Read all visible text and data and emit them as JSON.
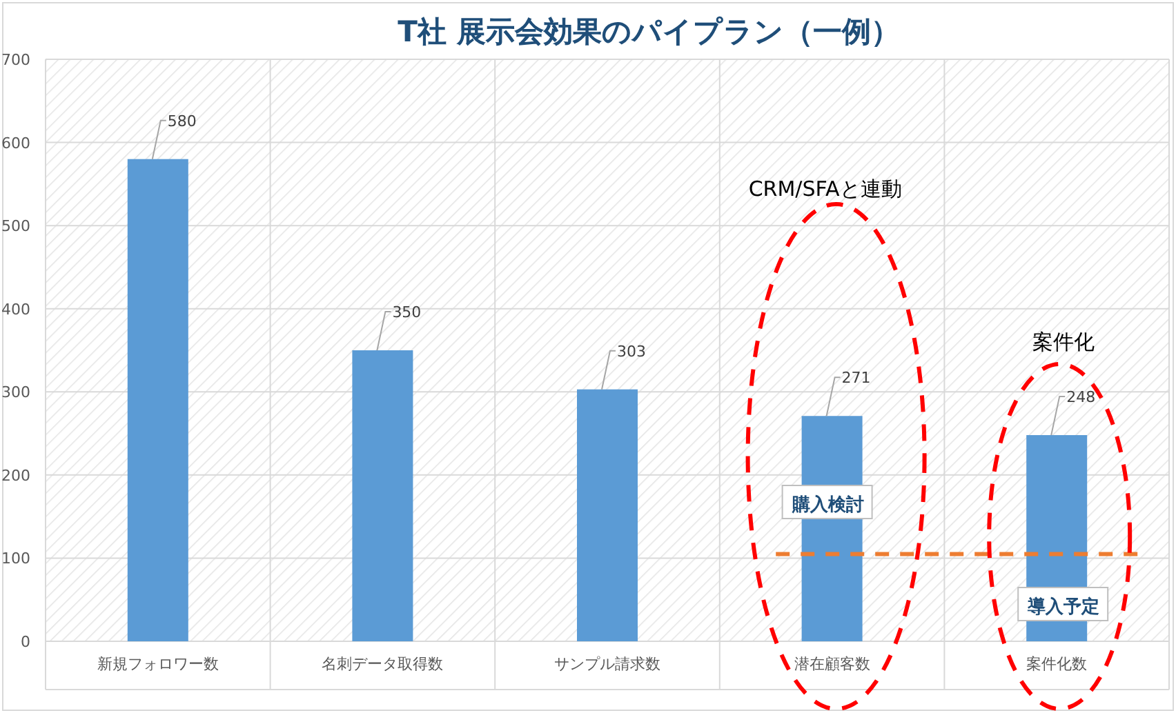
{
  "chart_data": {
    "type": "bar",
    "title": "T社  展示会効果のパイプラン（一例）",
    "categories": [
      "新規フォロワー数",
      "名刺データ取得数",
      "サンプル請求数",
      "潜在顧客数",
      "案件化数"
    ],
    "values": [
      580,
      350,
      303,
      271,
      248
    ],
    "color": "#5b9bd5",
    "data_labels": true,
    "ylim": [
      0,
      700
    ],
    "yticks": [
      0,
      100,
      200,
      300,
      400,
      500,
      600,
      700
    ],
    "grid": true,
    "ref_lines": [
      {
        "axis": "y",
        "value": 105,
        "color": "#ed7d31",
        "line_style": "dashed"
      }
    ],
    "annotations": [
      "CRM/SFAと連動",
      "案件化",
      "購入検討",
      "導入予定"
    ]
  }
}
